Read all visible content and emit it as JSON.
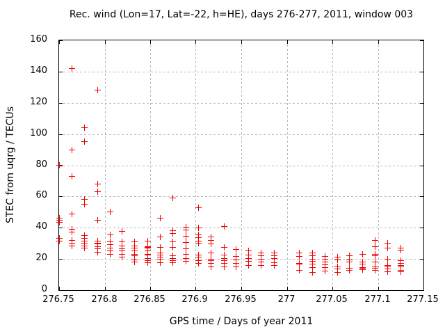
{
  "chart_data": {
    "type": "scatter",
    "title": "Rec. wind (Lon=17, Lat=-22, h=HE), days 276-277, 2011, window 003",
    "xlabel": "GPS time / Days of year 2011",
    "ylabel": "STEC from uqrg / TECUs",
    "xlim": [
      276.75,
      277.15
    ],
    "ylim": [
      0,
      160
    ],
    "xticks": {
      "values": [
        276.75,
        276.8,
        276.85,
        276.9,
        276.95,
        277,
        277.05,
        277.1,
        277.15
      ],
      "labels": [
        "276.75",
        "276.8",
        "276.85",
        "276.9",
        "276.95",
        "277",
        "277.05",
        "277.1",
        "277.15"
      ]
    },
    "yticks": {
      "values": [
        0,
        20,
        40,
        60,
        80,
        100,
        120,
        140,
        160
      ],
      "labels": [
        "0",
        "20",
        "40",
        "60",
        "80",
        "100",
        "120",
        "140",
        "160"
      ]
    },
    "grid": true,
    "legend": "none",
    "marker": "plus",
    "marker_color": "#ee0000",
    "grid_color": "#b8b8b8",
    "series": [
      {
        "name": "STEC from uqrg",
        "columns": [
          {
            "t": 276.75,
            "values": [
              80,
              46,
              45,
              43.5,
              33,
              31.5
            ]
          },
          {
            "t": 276.764,
            "values": [
              142,
              90,
              73,
              49,
              39,
              37,
              32,
              30,
              28.5
            ]
          },
          {
            "t": 276.778,
            "values": [
              104,
              95,
              58,
              55,
              35,
              33,
              31.5,
              30,
              28.5,
              27
            ]
          },
          {
            "t": 276.792,
            "values": [
              128,
              68,
              63,
              45,
              31.5,
              30,
              29.5,
              28,
              26.5,
              24.5
            ]
          },
          {
            "t": 276.806,
            "values": [
              50,
              35.5,
              31,
              29,
              27,
              25,
              23
            ]
          },
          {
            "t": 276.819,
            "values": [
              37.5,
              31,
              28.5,
              26.5,
              25,
              23,
              21
            ]
          },
          {
            "t": 276.833,
            "values": [
              31,
              28.5,
              27,
              25,
              23,
              22,
              19.5,
              18
            ]
          },
          {
            "t": 276.847,
            "values": [
              31.5,
              28,
              27.5,
              27,
              25,
              23,
              22.5,
              20.5,
              19,
              17.7
            ]
          },
          {
            "t": 276.861,
            "values": [
              46,
              34,
              27.5,
              24,
              22.5,
              21,
              20,
              17.7
            ]
          },
          {
            "t": 276.875,
            "values": [
              59,
              38,
              36.5,
              31,
              27.3,
              22,
              20.5,
              19,
              17.5
            ]
          },
          {
            "t": 276.889,
            "values": [
              40.5,
              38.7,
              34.5,
              30.5,
              26.5,
              23,
              20.5,
              18.5
            ]
          },
          {
            "t": 276.903,
            "values": [
              53,
              40,
              35.5,
              33.5,
              31.5,
              30,
              22.5,
              21,
              19,
              17
            ]
          },
          {
            "t": 276.917,
            "values": [
              34,
              32,
              29.5,
              24,
              20,
              19,
              17,
              15
            ]
          },
          {
            "t": 276.931,
            "values": [
              41,
              27.5,
              22.5,
              20.5,
              19,
              17,
              15
            ]
          },
          {
            "t": 276.944,
            "values": [
              26,
              21.5,
              19.5,
              17,
              15
            ]
          },
          {
            "t": 276.958,
            "values": [
              25,
              22.5,
              20.5,
              18.5,
              16
            ]
          },
          {
            "t": 276.972,
            "values": [
              24,
              22,
              20,
              18,
              16
            ]
          },
          {
            "t": 276.986,
            "values": [
              24,
              22,
              20.5,
              17.7,
              16
            ]
          },
          {
            "t": 277.014,
            "values": [
              24,
              21.5,
              17,
              16.5,
              12.5
            ]
          },
          {
            "t": 277.028,
            "values": [
              24,
              22,
              20,
              18.3,
              16.5,
              14.7,
              11.5
            ]
          },
          {
            "t": 277.042,
            "values": [
              21.7,
              19.7,
              18,
              16.2,
              14.3,
              12.3
            ]
          },
          {
            "t": 277.056,
            "values": [
              21,
              19.5,
              15,
              13.5,
              11.5
            ]
          },
          {
            "t": 277.069,
            "values": [
              22,
              19.5,
              18,
              14,
              12.5
            ]
          },
          {
            "t": 277.083,
            "values": [
              23,
              18,
              16.5,
              14.5,
              14,
              13
            ]
          },
          {
            "t": 277.097,
            "values": [
              32,
              28,
              23,
              22,
              18,
              15,
              14,
              12.5
            ]
          },
          {
            "t": 277.111,
            "values": [
              30,
              27,
              20,
              16,
              15,
              13.5,
              12
            ]
          },
          {
            "t": 277.125,
            "values": [
              27,
              25.5,
              19,
              17,
              16,
              15,
              12.5,
              12
            ]
          }
        ]
      }
    ]
  }
}
